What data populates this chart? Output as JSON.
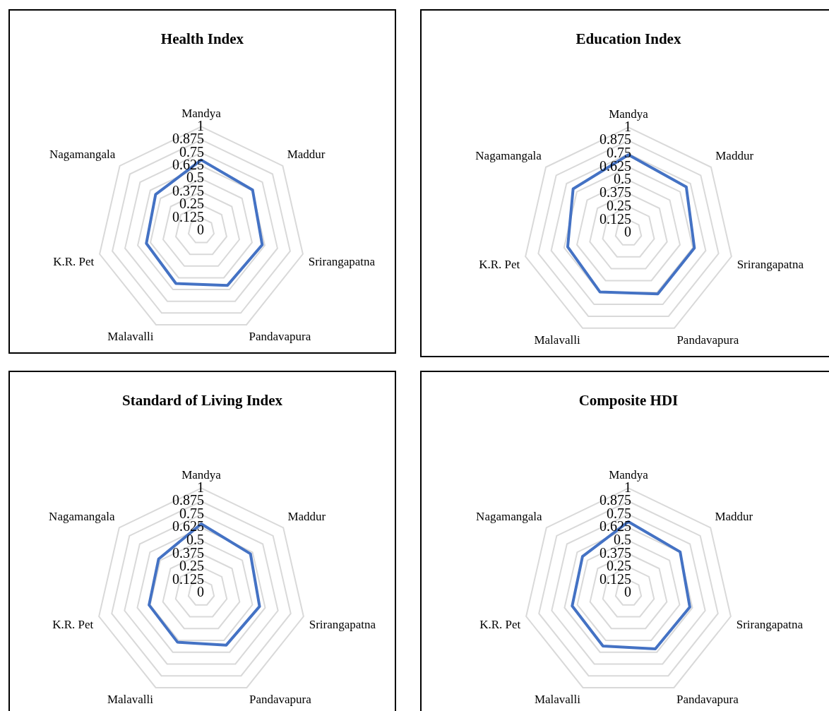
{
  "chart_data": [
    {
      "type": "radar",
      "title": "Health Index",
      "categories": [
        "Mandya",
        "Maddur",
        "Srirangapatna",
        "Pandavapura",
        "Malavalli",
        "K.R. Pet",
        "Nagamangala"
      ],
      "series": [
        {
          "color": "#4472c4",
          "values": [
            0.68,
            0.63,
            0.6,
            0.58,
            0.56,
            0.54,
            0.56
          ]
        }
      ],
      "ylim": [
        0,
        1
      ],
      "yticks": [
        0,
        0.125,
        0.25,
        0.375,
        0.5,
        0.625,
        0.75,
        0.875,
        1
      ],
      "grid": true,
      "legend": false,
      "marker": "none"
    },
    {
      "type": "radar",
      "title": "Education Index",
      "categories": [
        "Mandya",
        "Maddur",
        "Srirangapatna",
        "Pandavapura",
        "Malavalli",
        "K.R. Pet",
        "Nagamangala"
      ],
      "series": [
        {
          "color": "#4472c4",
          "values": [
            0.74,
            0.7,
            0.64,
            0.64,
            0.62,
            0.59,
            0.67
          ]
        }
      ],
      "ylim": [
        0,
        1
      ],
      "yticks": [
        0,
        0.125,
        0.25,
        0.375,
        0.5,
        0.625,
        0.75,
        0.875,
        1
      ],
      "grid": true,
      "legend": false,
      "marker": "none"
    },
    {
      "type": "radar",
      "title": "Standard of Living Index",
      "categories": [
        "Mandya",
        "Maddur",
        "Srirangapatna",
        "Pandavapura",
        "Malavalli",
        "K.R. Pet",
        "Nagamangala"
      ],
      "series": [
        {
          "color": "#4472c4",
          "values": [
            0.66,
            0.6,
            0.57,
            0.55,
            0.52,
            0.51,
            0.52
          ]
        }
      ],
      "ylim": [
        0,
        1
      ],
      "yticks": [
        0,
        0.125,
        0.25,
        0.375,
        0.5,
        0.625,
        0.75,
        0.875,
        1
      ],
      "grid": true,
      "legend": false,
      "marker": "none"
    },
    {
      "type": "radar",
      "title": "Composite HDI",
      "categories": [
        "Mandya",
        "Maddur",
        "Srirangapatna",
        "Pandavapura",
        "Malavalli",
        "K.R. Pet",
        "Nagamangala"
      ],
      "series": [
        {
          "color": "#4472c4",
          "values": [
            0.68,
            0.63,
            0.6,
            0.59,
            0.56,
            0.55,
            0.56
          ]
        }
      ],
      "ylim": [
        0,
        1
      ],
      "yticks": [
        0,
        0.125,
        0.25,
        0.375,
        0.5,
        0.625,
        0.75,
        0.875,
        1
      ],
      "grid": true,
      "legend": false,
      "marker": "none"
    }
  ]
}
